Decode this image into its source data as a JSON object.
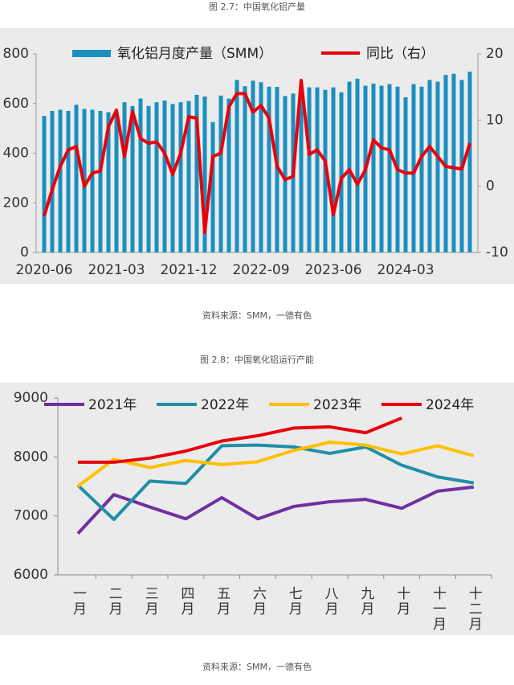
{
  "chart_data": [
    {
      "type": "combo",
      "title": "图 2.7：中国氧化铝产量",
      "source": "资料来源：SMM，一德有色",
      "categories": [
        "2020-06",
        null,
        null,
        null,
        null,
        null,
        null,
        null,
        null,
        "2021-03",
        null,
        null,
        null,
        null,
        null,
        null,
        null,
        null,
        "2021-12",
        null,
        null,
        null,
        null,
        null,
        null,
        null,
        null,
        "2022-09",
        null,
        null,
        null,
        null,
        null,
        null,
        null,
        null,
        "2023-06",
        null,
        null,
        null,
        null,
        null,
        null,
        null,
        null,
        "2024-03",
        null,
        null,
        null,
        null,
        null,
        null,
        null,
        null
      ],
      "series": [
        {
          "name": "氧化铝月度产量（SMM）",
          "type": "bar",
          "color": "#1a8fbf",
          "values": [
            550,
            570,
            575,
            570,
            595,
            578,
            575,
            570,
            565,
            568,
            605,
            590,
            620,
            590,
            605,
            612,
            598,
            605,
            610,
            635,
            628,
            525,
            632,
            620,
            695,
            670,
            692,
            686,
            668,
            667,
            630,
            640,
            635,
            665,
            665,
            655,
            665,
            645,
            688,
            700,
            672,
            680,
            672,
            678,
            668,
            625,
            678,
            668,
            695,
            688,
            715,
            720,
            695,
            728
          ]
        },
        {
          "name": "同比（右）",
          "type": "line",
          "axis": "y2",
          "color": "#e8000b",
          "values": [
            -4.5,
            -0.5,
            3,
            5.5,
            6,
            0,
            2,
            2.3,
            9,
            11.5,
            4.5,
            11.3,
            7.2,
            6.5,
            6.7,
            5,
            1.8,
            5,
            10.5,
            10.3,
            -7,
            4.5,
            5,
            12,
            14,
            14,
            11.2,
            12.2,
            10.3,
            3,
            1,
            1.5,
            16,
            4.8,
            5.5,
            3.8,
            -4.3,
            1.2,
            2.5,
            0.3,
            2.5,
            7,
            5.8,
            5.5,
            2.5,
            2,
            2,
            4.5,
            6,
            4.5,
            3,
            2.8,
            2.6,
            6.5
          ]
        }
      ],
      "ylim": [
        0,
        800
      ],
      "yticks": [
        0,
        200,
        400,
        600,
        800
      ],
      "y2lim": [
        -10,
        20
      ],
      "y2ticks": [
        -10,
        0,
        10,
        20
      ]
    },
    {
      "type": "line",
      "title": "图 2.8：中国氧化铝运行产能",
      "source": "资料来源：SMM，一德有色",
      "categories": [
        "一月",
        "二月",
        "三月",
        "四月",
        "五月",
        "六月",
        "七月",
        "八月",
        "九月",
        "十月",
        "十一月",
        "十二月"
      ],
      "series": [
        {
          "name": "2021年",
          "color": "#7030a0",
          "values": [
            6700,
            7360,
            7150,
            6950,
            7310,
            6950,
            7160,
            7240,
            7280,
            7130,
            7420,
            7490
          ]
        },
        {
          "name": "2022年",
          "color": "#1f8fa8",
          "values": [
            7520,
            6940,
            7590,
            7550,
            8190,
            8200,
            8170,
            8060,
            8170,
            7860,
            7660,
            7560
          ]
        },
        {
          "name": "2023年",
          "color": "#ffc000",
          "values": [
            7500,
            7960,
            7820,
            7940,
            7870,
            7920,
            8110,
            8250,
            8200,
            8050,
            8190,
            8020
          ]
        },
        {
          "name": "2024年",
          "color": "#e8000b",
          "values": [
            7910,
            7910,
            7980,
            8100,
            8270,
            8360,
            8490,
            8510,
            8410,
            8660,
            null,
            null
          ]
        }
      ],
      "ylim": [
        6000,
        9000
      ],
      "yticks": [
        6000,
        7000,
        8000,
        9000
      ]
    }
  ]
}
